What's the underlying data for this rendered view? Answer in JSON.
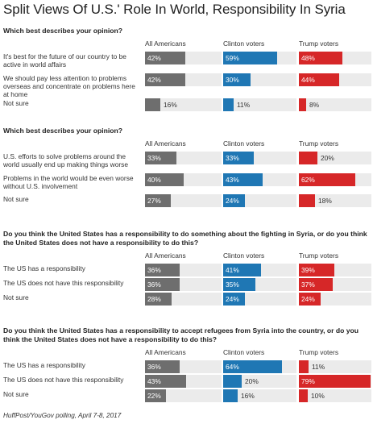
{
  "title": "Split Views Of U.S.' Role In World, Responsibility In Syria",
  "source": "HuffPost/YouGov polling, April 7-8, 2017",
  "colors": {
    "all": "#6e6e6e",
    "clinton": "#1f77b4",
    "trump": "#d62728",
    "track": "#ebebeb"
  },
  "columns": [
    "All Americans",
    "Clinton voters",
    "Trump voters"
  ],
  "chart_data": [
    {
      "type": "bar",
      "question": "Which best describes your opinion?",
      "categories": [
        "It's best for the future of our country to be active in world affairs",
        "We should pay less attention to problems overseas and concentrate on problems here at home",
        "Not sure"
      ],
      "series": [
        {
          "name": "All Americans",
          "values": [
            42,
            42,
            16
          ]
        },
        {
          "name": "Clinton voters",
          "values": [
            59,
            30,
            11
          ]
        },
        {
          "name": "Trump voters",
          "values": [
            48,
            44,
            8
          ]
        }
      ]
    },
    {
      "type": "bar",
      "question": "Which best describes your opinion?",
      "categories": [
        "U.S. efforts to solve problems around the world usually end up making things worse",
        "Problems in the world would be even worse without U.S. involvement",
        "Not sure"
      ],
      "series": [
        {
          "name": "All Americans",
          "values": [
            33,
            40,
            27
          ]
        },
        {
          "name": "Clinton voters",
          "values": [
            33,
            43,
            24
          ]
        },
        {
          "name": "Trump voters",
          "values": [
            20,
            62,
            18
          ]
        }
      ]
    },
    {
      "type": "bar",
      "question": "Do you think the United States has a responsibility to do something about the fighting in Syria, or do you think the United States does not have a responsibility to do this?",
      "categories": [
        "The US has a responsibility",
        "The US does not have this responsibility",
        "Not sure"
      ],
      "series": [
        {
          "name": "All Americans",
          "values": [
            36,
            36,
            28
          ]
        },
        {
          "name": "Clinton voters",
          "values": [
            41,
            35,
            24
          ]
        },
        {
          "name": "Trump voters",
          "values": [
            39,
            37,
            24
          ]
        }
      ]
    },
    {
      "type": "bar",
      "question": "Do you think the United States has a responsibility to accept refugees from Syria into the country, or do you think the United States does not have a responsibility to do this?",
      "categories": [
        "The US has a responsibility",
        "The US does not have this responsibility",
        "Not sure"
      ],
      "series": [
        {
          "name": "All Americans",
          "values": [
            36,
            43,
            22
          ]
        },
        {
          "name": "Clinton voters",
          "values": [
            64,
            20,
            16
          ]
        },
        {
          "name": "Trump voters",
          "values": [
            11,
            79,
            10
          ]
        }
      ]
    }
  ]
}
